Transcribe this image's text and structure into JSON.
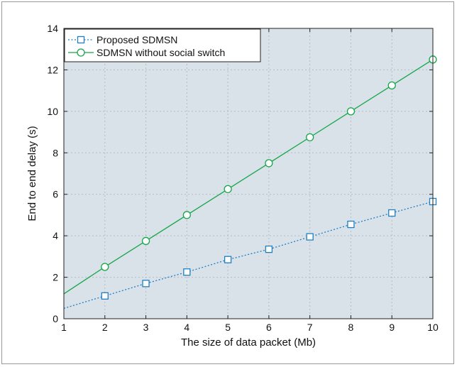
{
  "chart_data": {
    "type": "line",
    "xlabel": "The size of data packet (Mb)",
    "ylabel": "End to end delay (s)",
    "xlim": [
      1,
      10
    ],
    "ylim": [
      0,
      14
    ],
    "x_ticks": [
      1,
      2,
      3,
      4,
      5,
      6,
      7,
      8,
      9,
      10
    ],
    "y_ticks": [
      0,
      2,
      4,
      6,
      8,
      10,
      12,
      14
    ],
    "grid": true,
    "legend_position": "top-left",
    "background_color": "#d9e2e8",
    "series": [
      {
        "name": "Proposed SDMSN",
        "color": "#1f7fc4",
        "line_style": "dotted",
        "marker": "square",
        "x": [
          1,
          2,
          3,
          4,
          5,
          6,
          7,
          8,
          9,
          10
        ],
        "y": [
          0.5,
          1.1,
          1.7,
          2.25,
          2.85,
          3.35,
          3.95,
          4.55,
          5.1,
          5.65
        ],
        "marked_x": [
          2,
          3,
          4,
          5,
          6,
          7,
          8,
          9,
          10
        ]
      },
      {
        "name": "SDMSN without social switch",
        "color": "#16a64a",
        "line_style": "solid",
        "marker": "circle",
        "x": [
          1,
          2,
          3,
          4,
          5,
          6,
          7,
          8,
          9,
          10
        ],
        "y": [
          1.2,
          2.5,
          3.75,
          5.0,
          6.25,
          7.5,
          8.75,
          10.0,
          11.25,
          12.5
        ],
        "marked_x": [
          2,
          3,
          4,
          5,
          6,
          7,
          8,
          9,
          10
        ]
      }
    ]
  }
}
